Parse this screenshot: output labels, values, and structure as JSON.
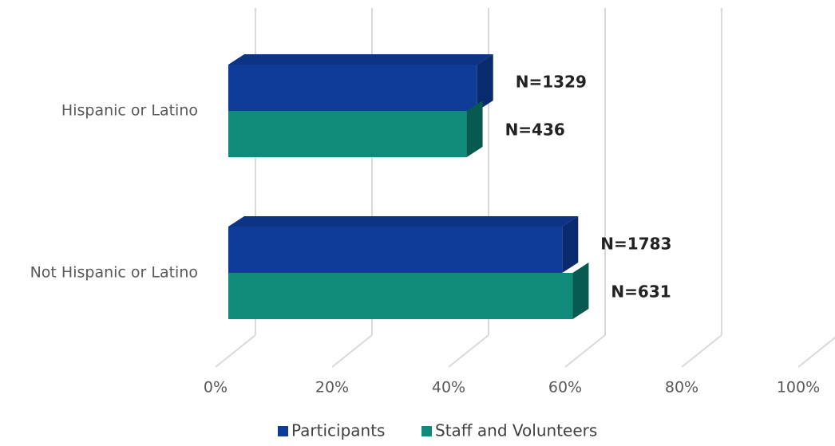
{
  "chart_data": {
    "type": "bar3d-horizontal",
    "categories": [
      "Hispanic or Latino",
      "Not Hispanic or Latino"
    ],
    "series": [
      {
        "name": "Participants",
        "color": "#0f3c97",
        "side_color": "#0a2a6e",
        "top_color": "#0c3384",
        "values": [
          42.7,
          57.3
        ],
        "data_labels": [
          "N=1329",
          "N=1783"
        ]
      },
      {
        "name": "Staff and Volunteers",
        "color": "#0f8a7b",
        "side_color": "#075a4f",
        "top_color": "#0b7568",
        "values": [
          40.9,
          59.1
        ],
        "data_labels": [
          "N=436",
          "N=631"
        ]
      }
    ],
    "xlim": [
      0,
      100
    ],
    "xticks": [
      {
        "value": 0,
        "label": "0%"
      },
      {
        "value": 20,
        "label": "20%"
      },
      {
        "value": 40,
        "label": "40%"
      },
      {
        "value": 60,
        "label": "60%"
      },
      {
        "value": 80,
        "label": "80%"
      },
      {
        "value": 100,
        "label": "100%"
      }
    ],
    "grid": true,
    "legend": "bottom"
  }
}
